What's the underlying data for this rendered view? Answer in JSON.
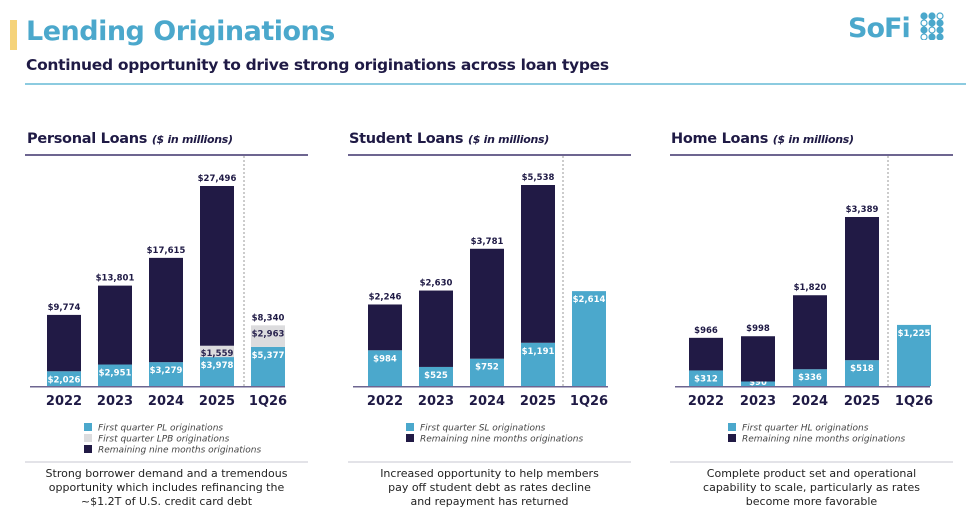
{
  "header": {
    "title": "Lending Originations",
    "subtitle": "Continued opportunity to drive strong originations across loan types",
    "logo_text": "SoFi"
  },
  "colors": {
    "first_quarter": "#4ba8cc",
    "lpb": "#dcdcde",
    "remaining": "#211a45",
    "title": "#4ba8cc",
    "accent": "#f5d37a"
  },
  "chart_data": [
    {
      "type": "bar",
      "stacked": true,
      "title": "Personal Loans",
      "unit_note": "($ in millions)",
      "categories": [
        "2022",
        "2023",
        "2024",
        "2025",
        "1Q26"
      ],
      "totals": [
        9774,
        13801,
        17615,
        27496,
        8340
      ],
      "total_labels": [
        "$9,774",
        "$13,801",
        "$17,615",
        "$27,496",
        "$8,340"
      ],
      "series": [
        {
          "name": "First quarter PL originations",
          "values": [
            2026,
            2951,
            3279,
            3978,
            5377
          ],
          "labels": [
            "$2,026",
            "$2,951",
            "$3,279",
            "$3,978",
            "$5,377"
          ]
        },
        {
          "name": "First quarter LPB originations",
          "values": [
            0,
            0,
            0,
            1559,
            2963
          ],
          "labels": [
            "",
            "",
            "",
            "$1,559",
            "$2,963"
          ]
        },
        {
          "name": "Remaining nine months originations",
          "values": [
            7748,
            10850,
            14336,
            21959,
            0
          ]
        }
      ],
      "legend": [
        "First quarter PL originations",
        "First quarter LPB originations",
        "Remaining nine months originations"
      ],
      "description": [
        "Strong borrower demand and a tremendous",
        "opportunity which includes refinancing the",
        "~$1.2T of U.S. credit card debt"
      ]
    },
    {
      "type": "bar",
      "stacked": true,
      "title": "Student Loans",
      "unit_note": "($ in millions)",
      "categories": [
        "2022",
        "2023",
        "2024",
        "2025",
        "1Q26"
      ],
      "totals": [
        2246,
        2630,
        3781,
        5538,
        2614
      ],
      "total_labels": [
        "$2,246",
        "$2,630",
        "$3,781",
        "$5,538",
        ""
      ],
      "series": [
        {
          "name": "First quarter SL originations",
          "values": [
            984,
            525,
            752,
            1191,
            2614
          ],
          "labels": [
            "$984",
            "$525",
            "$752",
            "$1,191",
            "$2,614"
          ]
        },
        {
          "name": "Remaining nine months originations",
          "values": [
            1262,
            2105,
            3029,
            4347,
            0
          ]
        }
      ],
      "legend": [
        "First quarter SL originations",
        "Remaining nine months originations"
      ],
      "description": [
        "Increased opportunity to help members",
        "pay off student debt as rates decline",
        "and repayment has returned"
      ]
    },
    {
      "type": "bar",
      "stacked": true,
      "title": "Home Loans",
      "unit_note": "($ in millions)",
      "categories": [
        "2022",
        "2023",
        "2024",
        "2025",
        "1Q26"
      ],
      "totals": [
        966,
        998,
        1820,
        3389,
        1225
      ],
      "total_labels": [
        "$966",
        "$998",
        "$1,820",
        "$3,389",
        ""
      ],
      "series": [
        {
          "name": "First quarter HL originations",
          "values": [
            312,
            90,
            336,
            518,
            1225
          ],
          "labels": [
            "$312",
            "$90",
            "$336",
            "$518",
            "$1,225"
          ]
        },
        {
          "name": "Remaining nine months originations",
          "values": [
            654,
            908,
            1484,
            2871,
            0
          ]
        }
      ],
      "legend": [
        "First quarter HL originations",
        "Remaining nine months originations"
      ],
      "description": [
        "Complete product set and operational",
        "capability to scale, particularly as rates",
        "become more favorable"
      ]
    }
  ]
}
